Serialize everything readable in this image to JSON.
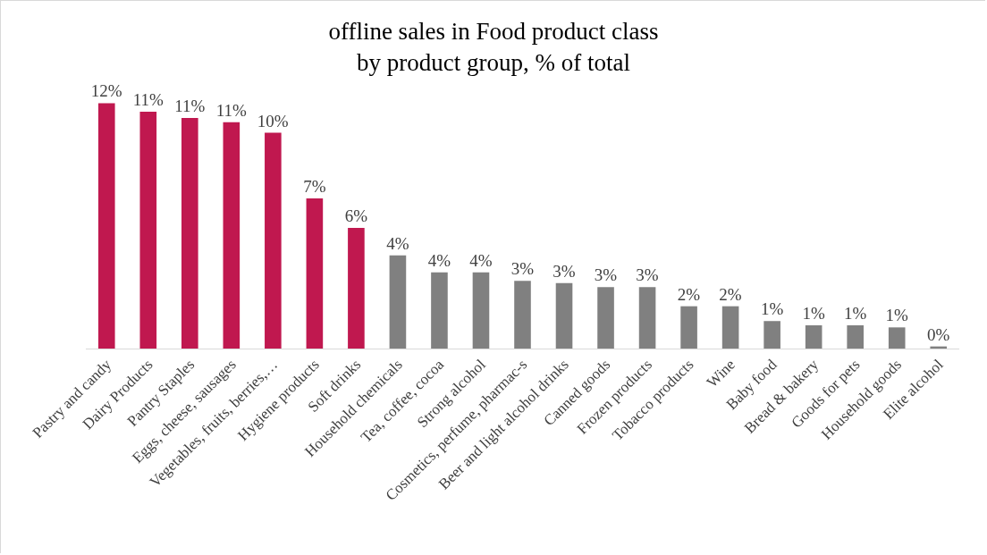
{
  "chart_data": {
    "type": "bar",
    "title": "offline sales in Food product class by product group, % of total",
    "categories": [
      "Pastry and candy",
      "Dairy Products",
      "Pantry Staples",
      "Eggs, cheese, sausages",
      "Vegetables, fruits, berries,…",
      "Hygiene products",
      "Soft drinks",
      "Household chemicals",
      "Tea, coffee, cocoa",
      "Strong alcohol",
      "Cosmetics, perfume, pharmac-s",
      "Beer and light alcohol drinks",
      "Canned goods",
      "Frozen products",
      "Tobacco products",
      "Wine",
      "Baby food",
      "Bread & bakery",
      "Goods for pets",
      "Household goods",
      "Elite alcohol"
    ],
    "values": [
      11.6,
      11.2,
      10.9,
      10.7,
      10.2,
      7.1,
      5.7,
      4.4,
      3.6,
      3.6,
      3.2,
      3.1,
      2.9,
      2.9,
      2.0,
      2.0,
      1.3,
      1.1,
      1.1,
      1.0,
      0.1
    ],
    "value_labels": [
      "12%",
      "11%",
      "11%",
      "11%",
      "10%",
      "7%",
      "6%",
      "4%",
      "4%",
      "4%",
      "3%",
      "3%",
      "3%",
      "3%",
      "2%",
      "2%",
      "1%",
      "1%",
      "1%",
      "1%",
      "0%"
    ],
    "colors": [
      "#c0184f",
      "#c0184f",
      "#c0184f",
      "#c0184f",
      "#c0184f",
      "#c0184f",
      "#c0184f",
      "#808080",
      "#808080",
      "#808080",
      "#808080",
      "#808080",
      "#808080",
      "#808080",
      "#808080",
      "#808080",
      "#808080",
      "#808080",
      "#808080",
      "#808080",
      "#808080"
    ],
    "grid": false
  }
}
